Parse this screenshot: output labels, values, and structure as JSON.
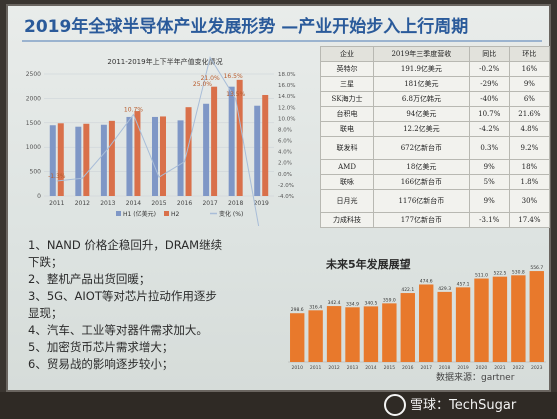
{
  "slide": {
    "title": "2019年全球半导体产业发展形势 —产业开始步入上行周期"
  },
  "chart_data": [
    {
      "type": "bar",
      "title": "2011-2019年上下半年产值变化情况",
      "categories": [
        "2011",
        "2012",
        "2013",
        "2014",
        "2015",
        "2016",
        "2017",
        "2018",
        "2019"
      ],
      "series": [
        {
          "name": "H1 (亿美元)",
          "color": "#7f97c6",
          "values": [
            1450,
            1420,
            1460,
            1620,
            1620,
            1550,
            1890,
            2240,
            1850
          ]
        },
        {
          "name": "H2",
          "color": "#d9704a",
          "values": [
            1490,
            1480,
            1540,
            1740,
            1630,
            1820,
            2240,
            2380,
            2070
          ]
        },
        {
          "name": "变化 (%)",
          "color": "#a8bdd8",
          "type": "line",
          "values": [
            -1.3,
            -0.8,
            4.5,
            10.7,
            -0.6,
            2.2,
            21.0,
            13.5,
            -12.0
          ]
        }
      ],
      "data_labels": [
        "-1.3%",
        "",
        "",
        "10.7%",
        "",
        "",
        "21.0%",
        "13.5%",
        "-12.0%"
      ],
      "extra_labels": [
        "16.5%",
        "25.0%"
      ],
      "ylim_left": [
        0,
        2500
      ],
      "left_ticks": [
        "0",
        "500",
        "1000",
        "1500",
        "2000",
        "2500"
      ],
      "right_ticks": [
        "-4.0%",
        "-2.0%",
        "0.0%",
        "2.0%",
        "4.0%",
        "6.0%",
        "8.0%",
        "10.0%",
        "12.0%",
        "14.0%",
        "16.0%",
        "18.0%"
      ],
      "legend": [
        "H1 (亿美元)",
        "H2",
        "变化 (%)"
      ]
    },
    {
      "type": "bar",
      "title": "未来5年发展展望",
      "categories": [
        "2010",
        "2011",
        "2012",
        "2013",
        "2014",
        "2015",
        "2016",
        "2017",
        "2018",
        "2019",
        "2020",
        "2021",
        "2022",
        "2023"
      ],
      "values": [
        298.6,
        316.4,
        342.4,
        334.9,
        340.5,
        359.0,
        422.1,
        474.6,
        429.3,
        457.1,
        511.0,
        522.5,
        530.8,
        556.7
      ],
      "value_labels": [
        "298.6",
        "316.4",
        "342.4",
        "334.9",
        "340.5",
        "359.0",
        "422.1",
        "474.6",
        "429.3",
        "457.1",
        "511.0",
        "522.5",
        "530.8",
        "556.7"
      ],
      "color": "#e8792c",
      "source": "数据来源：gartner"
    }
  ],
  "table": {
    "headers": [
      "企业",
      "2019年三季度营收",
      "同比",
      "环比"
    ],
    "rows": [
      [
        "英特尔",
        "191.9亿美元",
        "-0.2%",
        "16%"
      ],
      [
        "三星",
        "181亿美元",
        "-29%",
        "9%"
      ],
      [
        "SK海力士",
        "6.8万亿韩元",
        "-40%",
        "6%"
      ],
      [
        "台积电",
        "94亿美元",
        "10.7%",
        "21.6%"
      ],
      [
        "联电",
        "12.2亿美元",
        "-4.2%",
        "4.8%"
      ],
      [
        "联发科",
        "672亿新台币",
        "0.3%",
        "9.2%"
      ],
      [
        "AMD",
        "18亿美元",
        "9%",
        "18%"
      ],
      [
        "联咏",
        "166亿新台币",
        "5%",
        "1.8%"
      ],
      [
        "日月光",
        "1176亿新台币",
        "9%",
        "30%"
      ],
      [
        "力成科技",
        "177亿新台币",
        "-3.1%",
        "17.4%"
      ]
    ]
  },
  "notes": [
    "1、NAND 价格企稳回升，DRAM继续",
    "下跌；",
    "2、整机产品出货回暖；",
    "3、5G、AIOT等对芯片拉动作用逐步",
    "显现；",
    "4、汽车、工业等对器件需求加大。",
    "5、加密货币芯片需求增大；",
    "6、贸易战的影响逐步较小；"
  ],
  "watermark": {
    "text": "雪球：TechSugar"
  }
}
